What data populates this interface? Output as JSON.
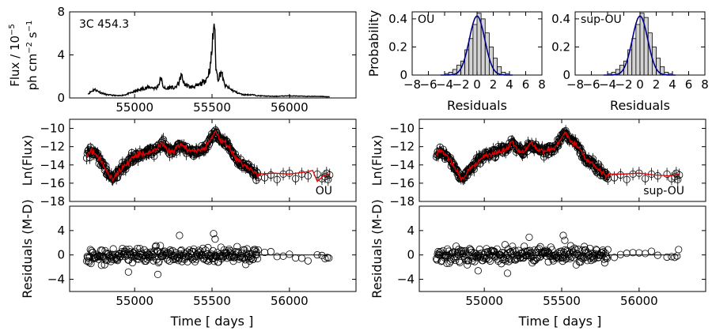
{
  "figure": {
    "lightcurve": {
      "annotation": "3C 454.3",
      "ylabel_line1": "Flux / 10",
      "ylabel_exp": "−5",
      "ylabel_line2": "ph cm",
      "ylabel_exp2": "−2",
      "ylabel_line3": " s",
      "ylabel_exp3": "−1"
    },
    "labels": {
      "ou": "OU",
      "sup_ou": "sup-OU",
      "probability": "Probability",
      "residuals": "Residuals",
      "ln_flux": "Ln(Flux)",
      "residuals_md": "Residuals (M-D)",
      "time": "Time [ days ]"
    },
    "colors": {
      "model_line": "#e00000",
      "hist_fill": "#d3d3d3",
      "fit_curve": "#00008b",
      "data": "#000000"
    }
  },
  "chart_data": [
    {
      "id": "flux",
      "type": "line",
      "title": "",
      "annotation": "3C 454.3",
      "xlabel": "",
      "ylabel": "Flux / 10^-5 ph cm^-2 s^-1",
      "xlim": [
        54580,
        56430
      ],
      "ylim": [
        0,
        8
      ],
      "xticks": [
        55000,
        55500,
        56000
      ],
      "yticks": [
        0,
        4,
        8
      ],
      "x": [
        54700,
        54740,
        54780,
        54820,
        54860,
        54900,
        54940,
        54980,
        55020,
        55060,
        55100,
        55140,
        55160,
        55170,
        55180,
        55200,
        55230,
        55260,
        55290,
        55300,
        55320,
        55360,
        55400,
        55440,
        55470,
        55490,
        55500,
        55510,
        55515,
        55520,
        55525,
        55530,
        55540,
        55560,
        55580,
        55620,
        55660,
        55700,
        55760,
        55800,
        55900,
        56000,
        56100,
        56200,
        56260
      ],
      "y": [
        0.4,
        0.8,
        0.5,
        0.3,
        0.25,
        0.2,
        0.3,
        0.5,
        0.7,
        0.9,
        1.0,
        0.9,
        1.4,
        2.0,
        1.2,
        0.8,
        1.0,
        0.9,
        1.5,
        2.2,
        1.3,
        1.0,
        1.1,
        1.4,
        1.9,
        3.0,
        4.5,
        6.5,
        7.5,
        5.0,
        3.0,
        2.3,
        1.8,
        2.5,
        1.2,
        0.8,
        0.5,
        0.3,
        0.3,
        0.2,
        0.15,
        0.2,
        0.15,
        0.15,
        0.1
      ]
    },
    {
      "id": "hist-ou",
      "type": "bar",
      "xlabel": "Residuals",
      "ylabel": "Probability",
      "legend": "OU",
      "xlim": [
        -8,
        8
      ],
      "ylim": [
        0,
        0.45
      ],
      "xticks": [
        -8,
        -6,
        -4,
        -2,
        0,
        2,
        4,
        6,
        8
      ],
      "yticks": [
        0.0,
        0.2,
        0.4
      ],
      "bins": [
        -4.0,
        -3.5,
        -3.0,
        -2.5,
        -2.0,
        -1.5,
        -1.0,
        -0.5,
        0.0,
        0.5,
        1.0,
        1.5,
        2.0,
        2.5,
        3.0,
        3.5
      ],
      "values": [
        0.01,
        0.02,
        0.04,
        0.07,
        0.1,
        0.18,
        0.26,
        0.36,
        0.44,
        0.4,
        0.3,
        0.2,
        0.12,
        0.06,
        0.02,
        0.01
      ],
      "fit": {
        "mean": 0.0,
        "sigma": 0.95
      }
    },
    {
      "id": "hist-sup-ou",
      "type": "bar",
      "xlabel": "Residuals",
      "ylabel": "",
      "legend": "sup-OU",
      "xlim": [
        -8,
        8
      ],
      "ylim": [
        0,
        0.45
      ],
      "xticks": [
        -8,
        -6,
        -4,
        -2,
        0,
        2,
        4,
        6,
        8
      ],
      "yticks": [
        0.0,
        0.2,
        0.4
      ],
      "bins": [
        -4.0,
        -3.5,
        -3.0,
        -2.5,
        -2.0,
        -1.5,
        -1.0,
        -0.5,
        0.0,
        0.5,
        1.0,
        1.5,
        2.0,
        2.5,
        3.0,
        3.5
      ],
      "values": [
        0.01,
        0.02,
        0.04,
        0.07,
        0.1,
        0.18,
        0.26,
        0.36,
        0.44,
        0.41,
        0.3,
        0.2,
        0.12,
        0.06,
        0.02,
        0.01
      ],
      "fit": {
        "mean": 0.0,
        "sigma": 0.95
      }
    },
    {
      "id": "lnflux-ou",
      "type": "scatter",
      "xlabel": "",
      "ylabel": "Ln(Flux)",
      "legend": "OU",
      "xlim": [
        54580,
        56430
      ],
      "ylim": [
        -18,
        -9
      ],
      "xticks": [
        55000,
        55500,
        56000
      ],
      "yticks": [
        -18,
        -16,
        -14,
        -12,
        -10
      ],
      "trend_x": [
        54690,
        54720,
        54760,
        54800,
        54830,
        54860,
        54900,
        54940,
        55000,
        55050,
        55100,
        55150,
        55180,
        55210,
        55250,
        55300,
        55350,
        55400,
        55450,
        55500,
        55520,
        55550,
        55600,
        55650,
        55700,
        55750,
        55800
      ],
      "trend_y": [
        -12.8,
        -12.5,
        -13.0,
        -14.0,
        -15.0,
        -15.6,
        -14.6,
        -14.0,
        -13.0,
        -12.8,
        -12.6,
        -12.2,
        -11.5,
        -12.3,
        -12.6,
        -11.7,
        -12.4,
        -12.5,
        -12.2,
        -11.0,
        -10.3,
        -11.2,
        -11.8,
        -13.2,
        -13.9,
        -14.6,
        -15.3
      ],
      "sparse_x": [
        55840,
        55880,
        55920,
        55960,
        56000,
        56040,
        56080,
        56120,
        56180,
        56210,
        56230,
        56240,
        56250,
        56260
      ],
      "sparse_y": [
        -15.4,
        -15.1,
        -15.6,
        -15.0,
        -14.9,
        -15.5,
        -15.0,
        -15.2,
        -15.0,
        -15.5,
        -15.3,
        -14.9,
        -15.6,
        -15.1
      ],
      "model_tail_x": [
        55800,
        55900,
        56000,
        56100,
        56150,
        56180,
        56220,
        56260
      ],
      "model_tail_y": [
        -15.0,
        -14.9,
        -15.0,
        -14.8,
        -14.6,
        -15.8,
        -15.2,
        -15.0
      ]
    },
    {
      "id": "lnflux-sup-ou",
      "type": "scatter",
      "xlabel": "",
      "ylabel": "",
      "legend": "sup-OU",
      "xlim": [
        54580,
        56430
      ],
      "ylim": [
        -18,
        -9
      ],
      "xticks": [
        55000,
        55500,
        56000
      ],
      "yticks": [
        -18,
        -16,
        -14,
        -12,
        -10
      ],
      "trend_x": [
        54690,
        54720,
        54760,
        54800,
        54830,
        54860,
        54900,
        54940,
        55000,
        55050,
        55100,
        55150,
        55180,
        55210,
        55250,
        55300,
        55350,
        55400,
        55450,
        55500,
        55520,
        55550,
        55600,
        55650,
        55700,
        55750,
        55800
      ],
      "trend_y": [
        -12.8,
        -12.5,
        -13.0,
        -14.0,
        -15.0,
        -15.6,
        -14.6,
        -14.0,
        -13.0,
        -12.8,
        -12.6,
        -12.2,
        -11.5,
        -12.3,
        -12.6,
        -11.7,
        -12.4,
        -12.5,
        -12.2,
        -11.0,
        -10.3,
        -11.2,
        -11.8,
        -13.2,
        -13.9,
        -14.6,
        -15.3
      ],
      "sparse_x": [
        55840,
        55880,
        55920,
        55960,
        56000,
        56040,
        56080,
        56120,
        56180,
        56210,
        56230,
        56240,
        56250,
        56260
      ],
      "sparse_y": [
        -15.4,
        -15.1,
        -15.6,
        -15.0,
        -14.9,
        -15.5,
        -15.0,
        -15.2,
        -15.0,
        -15.5,
        -15.3,
        -14.9,
        -15.6,
        -15.1
      ],
      "model_tail_x": [
        55800,
        55900,
        56000,
        56100,
        56200,
        56260
      ],
      "model_tail_y": [
        -15.0,
        -15.0,
        -14.9,
        -15.1,
        -15.2,
        -15.0
      ]
    },
    {
      "id": "resid-ou",
      "type": "scatter",
      "xlabel": "Time [ days ]",
      "ylabel": "Residuals (M-D)",
      "xlim": [
        54580,
        56430
      ],
      "ylim": [
        -6,
        8
      ],
      "xticks": [
        55000,
        55500,
        56000
      ],
      "yticks": [
        -4,
        0,
        4
      ],
      "zero_line": [
        54680,
        56260
      ],
      "outliers_x": [
        55290,
        55510,
        55520,
        54960,
        55150
      ],
      "outliers_y": [
        3.2,
        3.5,
        2.6,
        -2.8,
        -3.2
      ]
    },
    {
      "id": "resid-sup-ou",
      "type": "scatter",
      "xlabel": "Time [ days ]",
      "ylabel": "Residuals (M-D)",
      "xlim": [
        54580,
        56430
      ],
      "ylim": [
        -6,
        8
      ],
      "xticks": [
        55000,
        55500,
        56000
      ],
      "yticks": [
        -4,
        0,
        4
      ],
      "zero_line": [
        54680,
        56260
      ],
      "outliers_x": [
        55290,
        55510,
        55520,
        54960,
        55150
      ],
      "outliers_y": [
        2.9,
        3.2,
        2.4,
        -2.6,
        -3.0
      ]
    }
  ]
}
